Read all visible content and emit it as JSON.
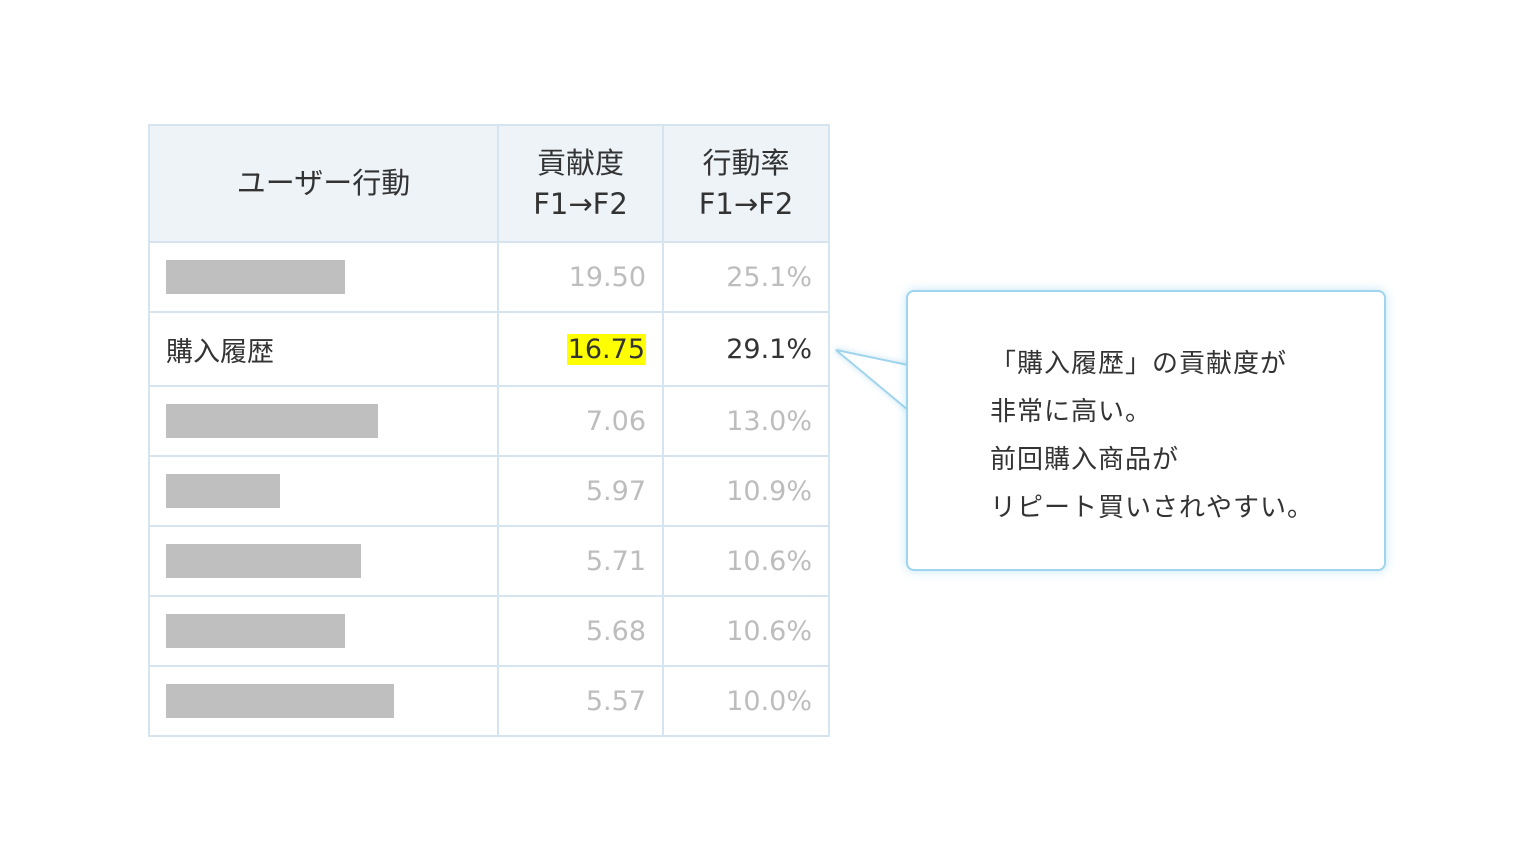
{
  "table": {
    "headers": {
      "col1": "ユーザー行動",
      "col2_line1": "貢献度",
      "col2_line2": "F1→F2",
      "col3_line1": "行動率",
      "col3_line2": "F1→F2"
    },
    "rows": [
      {
        "label": "",
        "masked": true,
        "contribution": "19.50",
        "rate": "25.1%"
      },
      {
        "label": "購入履歴",
        "masked": false,
        "contribution": "16.75",
        "rate": "29.1%",
        "highlighted": true
      },
      {
        "label": "",
        "masked": true,
        "contribution": "7.06",
        "rate": "13.0%"
      },
      {
        "label": "",
        "masked": true,
        "contribution": "5.97",
        "rate": "10.9%"
      },
      {
        "label": "",
        "masked": true,
        "contribution": "5.71",
        "rate": "10.6%"
      },
      {
        "label": "",
        "masked": true,
        "contribution": "5.68",
        "rate": "10.6%"
      },
      {
        "label": "",
        "masked": true,
        "contribution": "5.57",
        "rate": "10.0%"
      }
    ]
  },
  "callout": {
    "line1": "「購入履歴」の貢献度が",
    "line2": "非常に高い。",
    "line3": "前回購入商品が",
    "line4": "リピート買いされやすい。"
  },
  "colors": {
    "highlight_marker": "#ffff00",
    "callout_border": "#9fd4ec",
    "header_bg": "#eef3f8",
    "mask_bar": "#bfbfbf",
    "muted_text": "#bdbdbd"
  }
}
